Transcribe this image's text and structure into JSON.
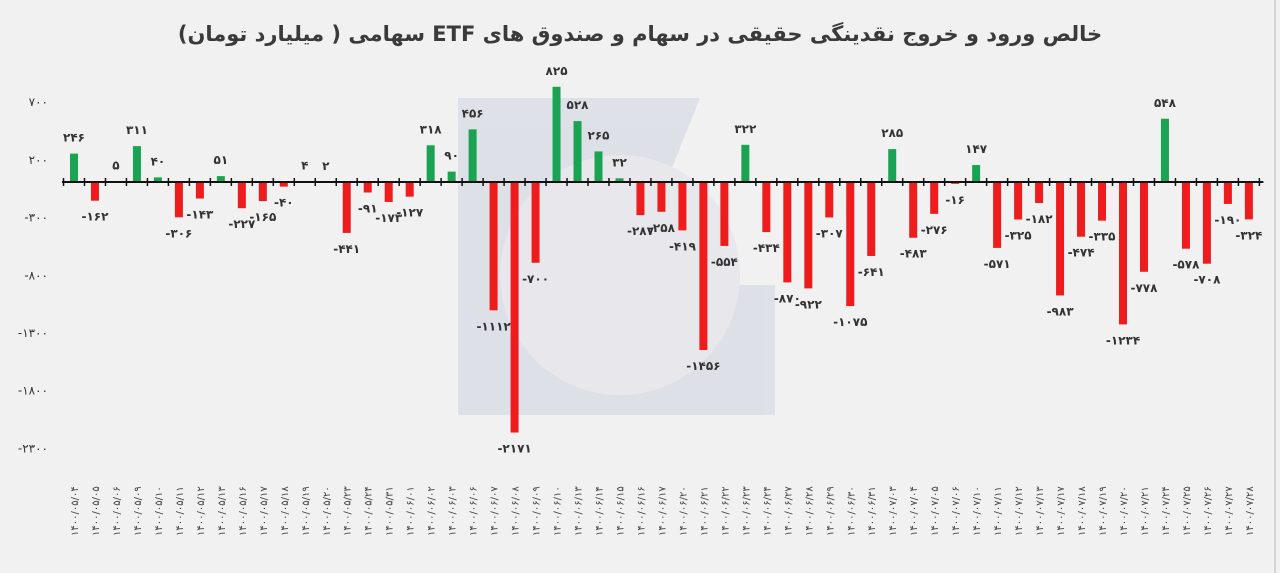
{
  "chart_data": {
    "type": "bar",
    "title": "خالص ورود و خروج نقدینگی حقیقی در سهام و صندوق های ETF سهامی ( میلیارد تومان)",
    "xlabel": "",
    "ylabel": "",
    "ylim": [
      -2300,
      700
    ],
    "yticks": [
      700,
      200,
      -300,
      -800,
      -1300,
      -1800,
      -2300
    ],
    "grid": false,
    "legend": "none",
    "colors": {
      "positive": "#1aa352",
      "negative": "#ee1c1c",
      "axis": "#111111",
      "text": "#333333"
    },
    "categories": [
      "1400/05/04",
      "1400/05/05",
      "1400/05/06",
      "1400/05/09",
      "1400/05/10",
      "1400/05/11",
      "1400/05/12",
      "1400/05/13",
      "1400/05/16",
      "1400/05/17",
      "1400/05/18",
      "1400/05/19",
      "1400/05/20",
      "1400/05/23",
      "1400/05/24",
      "1400/05/31",
      "1400/06/01",
      "1400/06/02",
      "1400/06/03",
      "1400/06/06",
      "1400/06/07",
      "1400/06/08",
      "1400/06/09",
      "1400/06/10",
      "1400/06/13",
      "1400/06/14",
      "1400/06/15",
      "1400/06/16",
      "1400/06/17",
      "1400/06/20",
      "1400/06/21",
      "1400/06/22",
      "1400/06/23",
      "1400/06/24",
      "1400/06/27",
      "1400/06/28",
      "1400/06/29",
      "1400/06/30",
      "1400/06/31",
      "1400/07/03",
      "1400/07/04",
      "1400/07/05",
      "1400/07/06",
      "1400/07/10",
      "1400/07/11",
      "1400/07/12",
      "1400/07/13",
      "1400/07/17",
      "1400/07/18",
      "1400/07/19",
      "1400/07/20",
      "1400/07/21",
      "1400/07/24",
      "1400/07/25",
      "1400/07/26",
      "1400/07/27",
      "1400/07/28"
    ],
    "values": [
      246,
      -162,
      5,
      311,
      40,
      -306,
      -143,
      51,
      -227,
      -165,
      -40,
      4,
      2,
      -441,
      -91,
      -173,
      -127,
      318,
      90,
      456,
      -1112,
      -2171,
      -700,
      825,
      528,
      265,
      32,
      -287,
      -258,
      -419,
      -1456,
      -554,
      322,
      -434,
      -870,
      -922,
      -307,
      -1075,
      -641,
      285,
      -483,
      -276,
      -16,
      147,
      -571,
      -325,
      -182,
      -983,
      -474,
      -335,
      -1234,
      -778,
      548,
      -578,
      -708,
      -190,
      -324
    ]
  }
}
